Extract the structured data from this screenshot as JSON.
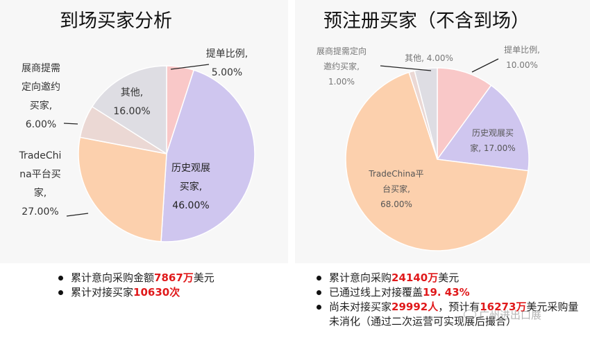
{
  "chart_data": [
    {
      "type": "pie",
      "title": "到场买家分析",
      "slices": [
        {
          "label_lines": [
            "提单比例,",
            "5.00%"
          ],
          "value": 5.0,
          "color": "#f9c8c8",
          "text_color": "#333333"
        },
        {
          "label_lines": [
            "历史观展",
            "买家,",
            "46.00%"
          ],
          "value": 46.0,
          "color": "#cfc6ef",
          "text_color": "#222222"
        },
        {
          "label_lines": [
            "TradeChi",
            "na平台买",
            "家,",
            "27.00%"
          ],
          "value": 27.0,
          "color": "#fcd0ad",
          "text_color": "#333333"
        },
        {
          "label_lines": [
            "展商提需",
            "定向邀约",
            "买家,",
            "6.00%"
          ],
          "value": 6.0,
          "color": "#ebd8d4",
          "text_color": "#333333"
        },
        {
          "label_lines": [
            "其他,",
            "16.00%"
          ],
          "value": 16.0,
          "color": "#dedde3",
          "text_color": "#333333"
        }
      ]
    },
    {
      "type": "pie",
      "title": "预注册买家（不含到场）",
      "slices": [
        {
          "label_lines": [
            "提单比例,",
            "10.00%"
          ],
          "value": 10.0,
          "color": "#f9c8c8",
          "text_color": "#777777"
        },
        {
          "label_lines": [
            "历史观展买",
            "家, 17.00%"
          ],
          "value": 17.0,
          "color": "#cfc6ef",
          "text_color": "#555555"
        },
        {
          "label_lines": [
            "TradeChina平",
            "台买家,",
            "68.00%"
          ],
          "value": 68.0,
          "color": "#fcd0ad",
          "text_color": "#555555"
        },
        {
          "label_lines": [
            "展商提需定向",
            "邀约买家,",
            "1.00%"
          ],
          "value": 1.0,
          "color": "#ebd8d4",
          "text_color": "#777777"
        },
        {
          "label_lines": [
            "其他, 4.00%"
          ],
          "value": 4.0,
          "color": "#dedde3",
          "text_color": "#777777"
        }
      ]
    }
  ],
  "notes_left": [
    {
      "pre": "累计意向采购金额",
      "hl": "7867万",
      "post": "美元"
    },
    {
      "pre": "累计对接买家",
      "hl": "10630次",
      "post": ""
    }
  ],
  "notes_right": [
    {
      "pre": "累计意向采购",
      "hl": "24140万",
      "post": "美元"
    },
    {
      "pre": "已通过线上对接覆盖",
      "hl": "19. 43%",
      "post": ""
    },
    {
      "pre": "尚未对接买家",
      "hl": "29992人",
      "mid": "，预计有",
      "hl2": "16273万",
      "post": "美元采购量未消化（通过二次运营可实现展后撮合）"
    }
  ],
  "watermark": "广州进出口展"
}
